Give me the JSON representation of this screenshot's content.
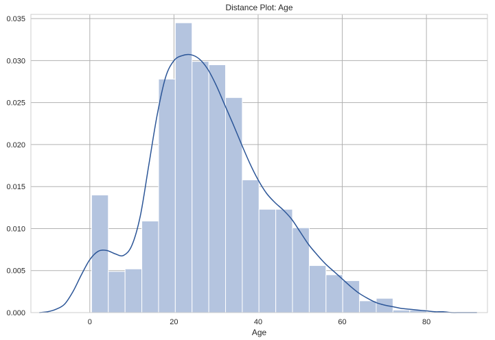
{
  "chart_data": {
    "type": "bar",
    "title": "Distance Plot: Age",
    "xlabel": "Age",
    "ylabel": "",
    "xlim": [
      -14.0,
      94.5
    ],
    "ylim": [
      0,
      0.0355
    ],
    "grid": true,
    "xticks": [
      0,
      20,
      40,
      60,
      80
    ],
    "yticks": [
      0.0,
      0.005,
      0.01,
      0.015,
      0.02,
      0.025,
      0.03,
      0.035
    ],
    "xtick_labels": [
      "0",
      "20",
      "40",
      "60",
      "80"
    ],
    "ytick_labels": [
      "0.000",
      "0.005",
      "0.010",
      "0.015",
      "0.020",
      "0.025",
      "0.030",
      "0.035"
    ],
    "bar_color": "#b4c4df",
    "line_color": "#2b5597",
    "histogram": {
      "bin_edges": [
        0.42,
        4.4,
        8.38,
        12.36,
        16.34,
        20.32,
        24.3,
        28.28,
        32.26,
        36.24,
        40.21,
        44.19,
        48.17,
        52.15,
        56.13,
        60.11,
        64.09,
        68.07,
        72.05,
        76.03,
        80.01
      ],
      "densities": [
        0.014,
        0.0049,
        0.0052,
        0.0109,
        0.0278,
        0.0345,
        0.0299,
        0.0295,
        0.0256,
        0.0158,
        0.0123,
        0.0123,
        0.0101,
        0.0056,
        0.0045,
        0.0038,
        0.0014,
        0.0017,
        0.0003,
        0.0003
      ]
    },
    "kde": {
      "x": [
        -12,
        -10,
        -8,
        -6,
        -4,
        -2,
        0,
        2,
        4,
        6,
        8,
        10,
        12,
        14,
        16,
        18,
        20,
        22,
        24,
        26,
        28,
        30,
        32,
        34,
        36,
        38,
        40,
        42,
        44,
        46,
        48,
        50,
        52,
        54,
        56,
        58,
        60,
        62,
        64,
        66,
        68,
        70,
        72,
        74,
        76,
        78,
        80,
        82,
        84,
        86,
        88,
        90,
        92
      ],
      "y": [
        0.0,
        0.0001,
        0.0004,
        0.001,
        0.0025,
        0.0045,
        0.0063,
        0.0073,
        0.0074,
        0.007,
        0.0068,
        0.008,
        0.0115,
        0.0175,
        0.0235,
        0.028,
        0.03,
        0.0306,
        0.0307,
        0.0302,
        0.029,
        0.0271,
        0.0248,
        0.0225,
        0.0201,
        0.0178,
        0.0158,
        0.0142,
        0.0131,
        0.0122,
        0.0111,
        0.0096,
        0.0081,
        0.0069,
        0.0058,
        0.0049,
        0.004,
        0.0031,
        0.0023,
        0.0017,
        0.0012,
        0.0009,
        0.0007,
        0.0005,
        0.0004,
        0.0003,
        0.0002,
        0.0001,
        0.0001,
        0.0,
        0.0,
        0.0,
        0.0
      ]
    }
  }
}
